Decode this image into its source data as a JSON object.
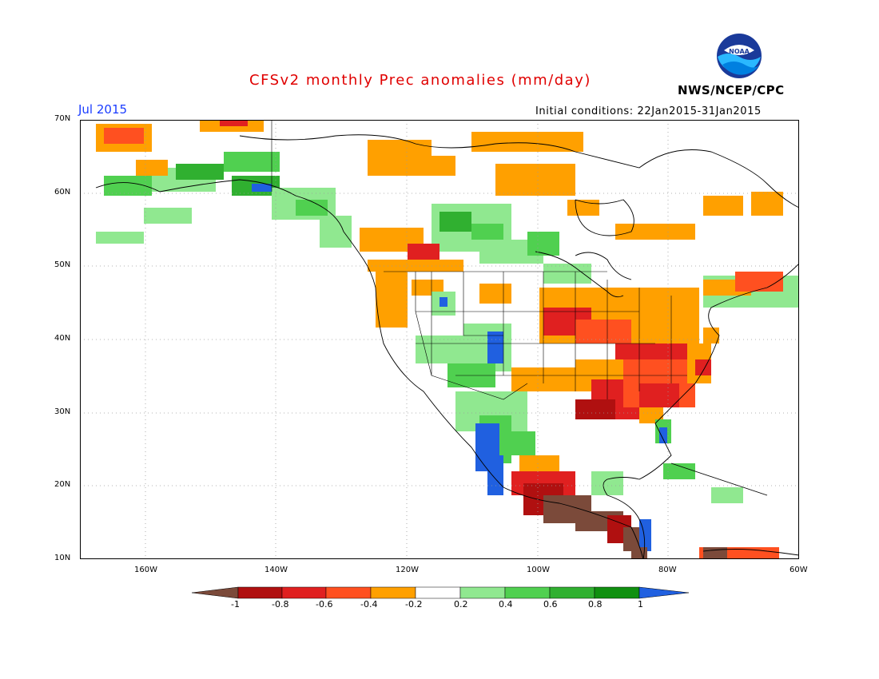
{
  "title": "CFSv2 monthly Prec anomalies (mm/day)",
  "month": "Jul 2015",
  "initial_conditions": "Initial conditions: 22Jan2015-31Jan2015",
  "agency": "NWS/NCEP/CPC",
  "logo_text": "NOAA",
  "lat_labels": [
    "70N",
    "60N",
    "50N",
    "40N",
    "30N",
    "20N",
    "10N"
  ],
  "lon_labels": [
    "160W",
    "140W",
    "120W",
    "100W",
    "80W",
    "60W"
  ],
  "colorbar": {
    "labels": [
      "-1",
      "-0.8",
      "-0.6",
      "-0.4",
      "-0.2",
      "0.2",
      "0.4",
      "0.6",
      "0.8",
      "1"
    ],
    "colors": [
      "#7b4a3a",
      "#b01010",
      "#e02020",
      "#ff5020",
      "#ffa000",
      "#ffffff",
      "#90e890",
      "#50d050",
      "#30b030",
      "#109010",
      "#2060e0"
    ]
  },
  "map": {
    "lon_range": [
      -170,
      -60
    ],
    "lat_range": [
      10,
      70
    ],
    "regions": [
      {
        "name": "south-central-us-dry",
        "level": -0.7
      },
      {
        "name": "southeast-us-dry",
        "level": -0.7
      },
      {
        "name": "southern-mexico-central-america-dry",
        "level": -1.0
      },
      {
        "name": "northwest-mexico-wet",
        "level": 1.0
      },
      {
        "name": "alaska-wet",
        "level": 0.5
      },
      {
        "name": "canadian-prairies-wet",
        "level": 0.5
      },
      {
        "name": "northern-canada-dry",
        "level": -0.3
      }
    ]
  }
}
